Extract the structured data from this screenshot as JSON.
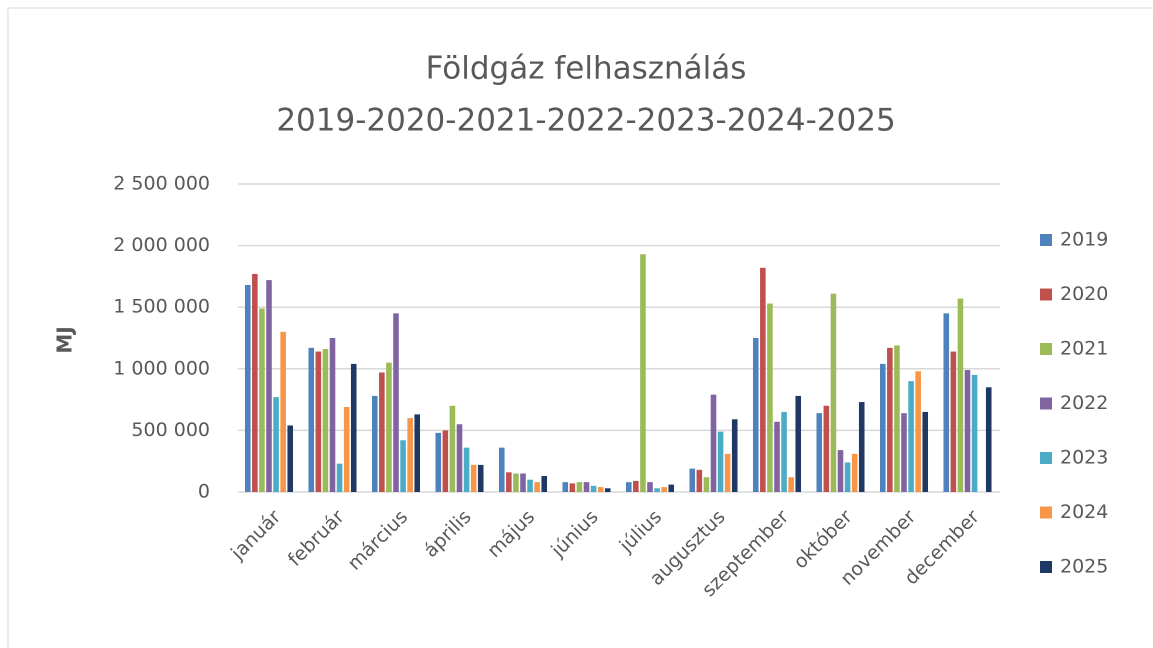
{
  "chart_data": {
    "type": "bar",
    "title": "Földgáz felhasználás",
    "subtitle": "2019-2020-2021-2022-2023-2024-2025",
    "ylabel": "MJ",
    "categories": [
      "január",
      "február",
      "március",
      "április",
      "május",
      "június",
      "július",
      "augusztus",
      "szeptember",
      "október",
      "november",
      "december"
    ],
    "series": [
      {
        "name": "2019",
        "color": "#4f81bd",
        "values": [
          1680000,
          1170000,
          780000,
          480000,
          360000,
          80000,
          80000,
          190000,
          1250000,
          640000,
          1040000,
          1450000
        ]
      },
      {
        "name": "2020",
        "color": "#c0504d",
        "values": [
          1770000,
          1140000,
          970000,
          500000,
          160000,
          70000,
          90000,
          180000,
          1820000,
          700000,
          1170000,
          1140000
        ]
      },
      {
        "name": "2021",
        "color": "#9bbb59",
        "values": [
          1490000,
          1160000,
          1050000,
          700000,
          150000,
          80000,
          1930000,
          120000,
          1530000,
          1610000,
          1190000,
          1570000
        ]
      },
      {
        "name": "2022",
        "color": "#8064a2",
        "values": [
          1720000,
          1250000,
          1450000,
          550000,
          150000,
          80000,
          80000,
          790000,
          570000,
          340000,
          640000,
          990000
        ]
      },
      {
        "name": "2023",
        "color": "#4bacc6",
        "values": [
          770000,
          230000,
          420000,
          360000,
          100000,
          50000,
          30000,
          490000,
          650000,
          240000,
          900000,
          950000
        ]
      },
      {
        "name": "2024",
        "color": "#f79646",
        "values": [
          1300000,
          690000,
          600000,
          220000,
          80000,
          40000,
          40000,
          310000,
          120000,
          310000,
          980000,
          null
        ]
      },
      {
        "name": "2025",
        "color": "#1f3864",
        "values": [
          540000,
          1040000,
          630000,
          220000,
          130000,
          30000,
          60000,
          590000,
          780000,
          730000,
          650000,
          850000
        ]
      }
    ],
    "ylim": [
      0,
      2500000
    ],
    "yticks": [
      0,
      {
        "value": 500000,
        "label": "500 000"
      },
      {
        "value": 1000000,
        "label": "1 000 000"
      },
      {
        "value": 1500000,
        "label": "1 500 000"
      },
      {
        "value": 2000000,
        "label": "2 000 000"
      },
      {
        "value": 2500000,
        "label": "2 500 000"
      }
    ],
    "grid": true,
    "legend": "right"
  }
}
